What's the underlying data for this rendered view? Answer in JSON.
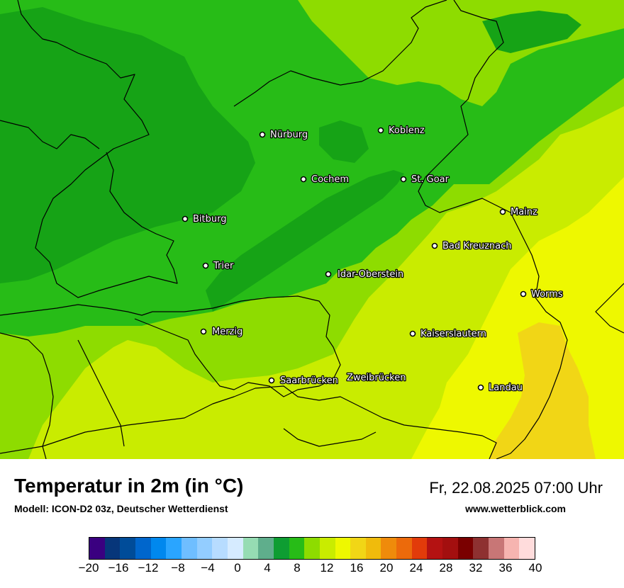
{
  "map": {
    "colors": {
      "dark_green": "#16a316",
      "mid_green": "#27bc17",
      "light_green": "#8edc00",
      "yellow_green": "#c9ec00",
      "yellow": "#eef800",
      "gold": "#f1d616",
      "border": "#000000"
    },
    "cities": [
      {
        "name": "Nürburg"
      },
      {
        "name": "Koblenz"
      },
      {
        "name": "Cochem"
      },
      {
        "name": "St. Goar"
      },
      {
        "name": "Bitburg"
      },
      {
        "name": "Mainz"
      },
      {
        "name": "Bad Kreuznach"
      },
      {
        "name": "Trier"
      },
      {
        "name": "Idar-Oberstein"
      },
      {
        "name": "Worms"
      },
      {
        "name": "Merzig"
      },
      {
        "name": "Kaiserslautern"
      },
      {
        "name": "Saarbrücken"
      },
      {
        "name": "Zweibrücken"
      },
      {
        "name": "Landau"
      }
    ]
  },
  "header": {
    "title": "Temperatur in 2m (in °C)",
    "model": "Modell: ICON-D2 03z, Deutscher Wetterdienst",
    "datetime": "Fr, 22.08.2025 07:00 Uhr",
    "website": "www.wetterblick.com"
  },
  "legend": {
    "colors": [
      "#3a0080",
      "#07367a",
      "#004c99",
      "#0066cc",
      "#0088ee",
      "#2aa5ff",
      "#6fbeff",
      "#93cdff",
      "#b7dcff",
      "#d6ebff",
      "#96dcb3",
      "#5fae8c",
      "#0e9d32",
      "#27bc17",
      "#8edc00",
      "#c9ec00",
      "#eef800",
      "#f1d616",
      "#f0bb0c",
      "#ef8b0b",
      "#ec6a0b",
      "#e23b0a",
      "#b41212",
      "#a30f0f",
      "#7a0000",
      "#8e3131",
      "#c87676",
      "#f6b4b0",
      "#ffdcdc"
    ],
    "ticks": [
      "−20",
      "−16",
      "−12",
      "−8",
      "−4",
      "0",
      "4",
      "8",
      "12",
      "16",
      "20",
      "24",
      "28",
      "32",
      "36",
      "40"
    ]
  }
}
